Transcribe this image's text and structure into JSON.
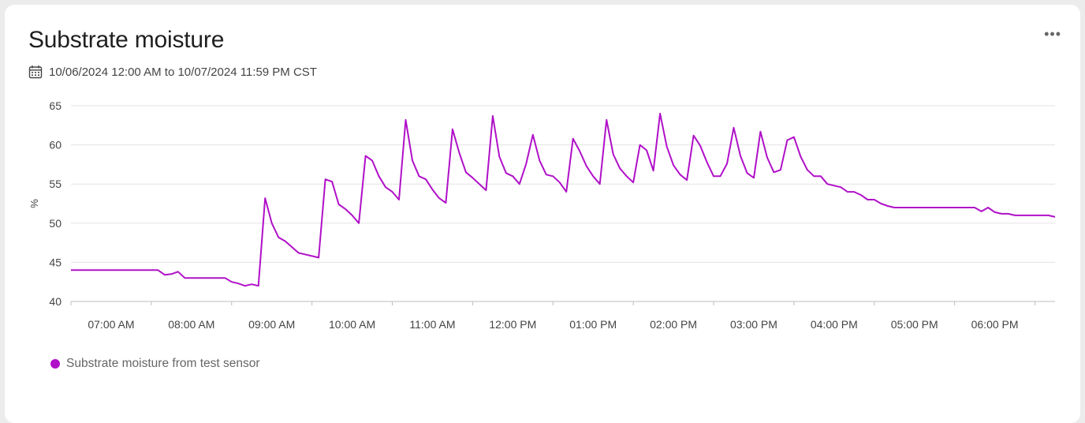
{
  "header": {
    "title": "Substrate moisture",
    "menu_label": "•••",
    "date_range": "10/06/2024 12:00 AM to 10/07/2024 11:59 PM CST"
  },
  "icons": {
    "calendar": "calendar-icon",
    "menu": "more-options-icon"
  },
  "colors": {
    "series": "#b010c8",
    "grid": "#e3e3e3",
    "axis_text": "#444444"
  },
  "legend": {
    "label": "Substrate moisture from test sensor",
    "position": "bottom-left"
  },
  "chart_data": {
    "type": "line",
    "title": "",
    "xlabel": "",
    "ylabel": "%",
    "ylim": [
      40,
      65
    ],
    "yticks": [
      40,
      45,
      50,
      55,
      60,
      65
    ],
    "xlim": [
      "06:30",
      "18:45"
    ],
    "xticks": [
      {
        "t": "07:00",
        "label": "07:00 AM"
      },
      {
        "t": "08:00",
        "label": "08:00 AM"
      },
      {
        "t": "09:00",
        "label": "09:00 AM"
      },
      {
        "t": "10:00",
        "label": "10:00 AM"
      },
      {
        "t": "11:00",
        "label": "11:00 AM"
      },
      {
        "t": "12:00",
        "label": "12:00 PM"
      },
      {
        "t": "13:00",
        "label": "01:00 PM"
      },
      {
        "t": "14:00",
        "label": "02:00 PM"
      },
      {
        "t": "15:00",
        "label": "03:00 PM"
      },
      {
        "t": "16:00",
        "label": "04:00 PM"
      },
      {
        "t": "17:00",
        "label": "05:00 PM"
      },
      {
        "t": "18:00",
        "label": "06:00 PM"
      }
    ],
    "grid": true,
    "series": [
      {
        "name": "Substrate moisture from test sensor",
        "points": [
          [
            "06:30",
            44
          ],
          [
            "07:35",
            44
          ],
          [
            "07:40",
            43.4
          ],
          [
            "07:45",
            43.5
          ],
          [
            "07:50",
            43.8
          ],
          [
            "07:55",
            43
          ],
          [
            "08:00",
            43
          ],
          [
            "08:10",
            43
          ],
          [
            "08:25",
            43
          ],
          [
            "08:30",
            42.5
          ],
          [
            "08:35",
            42.3
          ],
          [
            "08:40",
            42
          ],
          [
            "08:45",
            42.2
          ],
          [
            "08:50",
            42
          ],
          [
            "08:55",
            53.2
          ],
          [
            "09:00",
            50
          ],
          [
            "09:05",
            48.2
          ],
          [
            "09:10",
            47.7
          ],
          [
            "09:20",
            46.2
          ],
          [
            "09:35",
            45.6
          ],
          [
            "09:40",
            55.6
          ],
          [
            "09:45",
            55.3
          ],
          [
            "09:50",
            52.4
          ],
          [
            "09:55",
            51.8
          ],
          [
            "10:00",
            51
          ],
          [
            "10:05",
            50
          ],
          [
            "10:10",
            58.6
          ],
          [
            "10:15",
            58
          ],
          [
            "10:20",
            56
          ],
          [
            "10:25",
            54.6
          ],
          [
            "10:30",
            54
          ],
          [
            "10:35",
            53
          ],
          [
            "10:40",
            63.2
          ],
          [
            "10:45",
            58
          ],
          [
            "10:50",
            56
          ],
          [
            "10:55",
            55.6
          ],
          [
            "11:00",
            54.3
          ],
          [
            "11:05",
            53.2
          ],
          [
            "11:10",
            52.6
          ],
          [
            "11:15",
            62
          ],
          [
            "11:20",
            59
          ],
          [
            "11:25",
            56.5
          ],
          [
            "11:30",
            55.8
          ],
          [
            "11:40",
            54.2
          ],
          [
            "11:45",
            63.7
          ],
          [
            "11:50",
            58.5
          ],
          [
            "11:55",
            56.4
          ],
          [
            "12:00",
            56
          ],
          [
            "12:05",
            55
          ],
          [
            "12:10",
            57.6
          ],
          [
            "12:15",
            61.3
          ],
          [
            "12:20",
            58
          ],
          [
            "12:25",
            56.2
          ],
          [
            "12:30",
            56
          ],
          [
            "12:35",
            55.2
          ],
          [
            "12:40",
            54
          ],
          [
            "12:45",
            60.8
          ],
          [
            "12:50",
            59.2
          ],
          [
            "12:55",
            57.3
          ],
          [
            "13:00",
            56
          ],
          [
            "13:05",
            55
          ],
          [
            "13:10",
            63.2
          ],
          [
            "13:15",
            58.8
          ],
          [
            "13:20",
            57
          ],
          [
            "13:25",
            56
          ],
          [
            "13:30",
            55.2
          ],
          [
            "13:35",
            60
          ],
          [
            "13:40",
            59.3
          ],
          [
            "13:45",
            56.7
          ],
          [
            "13:50",
            64
          ],
          [
            "13:55",
            59.8
          ],
          [
            "14:00",
            57.4
          ],
          [
            "14:05",
            56.2
          ],
          [
            "14:10",
            55.5
          ],
          [
            "14:15",
            61.2
          ],
          [
            "14:20",
            59.9
          ],
          [
            "14:25",
            57.8
          ],
          [
            "14:30",
            56
          ],
          [
            "14:35",
            56
          ],
          [
            "14:40",
            57.6
          ],
          [
            "14:45",
            62.2
          ],
          [
            "14:50",
            58.6
          ],
          [
            "14:55",
            56.4
          ],
          [
            "15:00",
            55.8
          ],
          [
            "15:05",
            61.7
          ],
          [
            "15:10",
            58.4
          ],
          [
            "15:15",
            56.5
          ],
          [
            "15:20",
            56.8
          ],
          [
            "15:25",
            60.6
          ],
          [
            "15:30",
            61
          ],
          [
            "15:35",
            58.5
          ],
          [
            "15:40",
            56.8
          ],
          [
            "15:45",
            56
          ],
          [
            "15:50",
            56
          ],
          [
            "15:55",
            55
          ],
          [
            "16:00",
            54.8
          ],
          [
            "16:05",
            54.6
          ],
          [
            "16:10",
            54
          ],
          [
            "16:15",
            54
          ],
          [
            "16:20",
            53.6
          ],
          [
            "16:25",
            53
          ],
          [
            "16:30",
            53
          ],
          [
            "16:35",
            52.5
          ],
          [
            "16:40",
            52.2
          ],
          [
            "16:45",
            52
          ],
          [
            "17:00",
            52
          ],
          [
            "17:30",
            52
          ],
          [
            "17:45",
            52
          ],
          [
            "17:50",
            51.5
          ],
          [
            "17:55",
            52
          ],
          [
            "18:00",
            51.4
          ],
          [
            "18:05",
            51.2
          ],
          [
            "18:10",
            51.2
          ],
          [
            "18:15",
            51
          ],
          [
            "18:40",
            51
          ],
          [
            "18:45",
            50.8
          ]
        ]
      }
    ]
  }
}
